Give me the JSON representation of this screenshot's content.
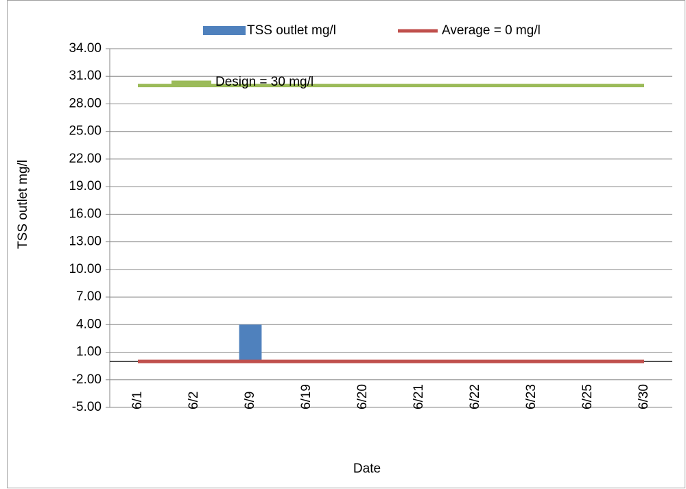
{
  "chart_data": {
    "type": "bar",
    "x_label": "Date",
    "y_label": "TSS outlet mg/l",
    "categories": [
      "6/1",
      "6/2",
      "6/9",
      "6/19",
      "6/20",
      "6/21",
      "6/22",
      "6/23",
      "6/25",
      "6/30"
    ],
    "series": [
      {
        "name": "TSS outlet  mg/l",
        "type": "bar",
        "color": "#4f81bd",
        "values": [
          0,
          0,
          4,
          0,
          0,
          0,
          0,
          0,
          0,
          0
        ]
      },
      {
        "name": "Average = 0 mg/l",
        "type": "line",
        "color": "#c0504d",
        "values": [
          0,
          0,
          0,
          0,
          0,
          0,
          0,
          0,
          0,
          0
        ]
      },
      {
        "name": "Design = 30 mg/l",
        "type": "line",
        "color": "#9bbb59",
        "values": [
          30,
          30,
          30,
          30,
          30,
          30,
          30,
          30,
          30,
          30
        ]
      }
    ],
    "ylim": [
      -5,
      34
    ],
    "yticks": [
      {
        "value": -5,
        "label": "-5.00"
      },
      {
        "value": -2,
        "label": "-2.00"
      },
      {
        "value": 1,
        "label": "1.00"
      },
      {
        "value": 4,
        "label": "4.00"
      },
      {
        "value": 7,
        "label": "7.00"
      },
      {
        "value": 10,
        "label": "10.00"
      },
      {
        "value": 13,
        "label": "13.00"
      },
      {
        "value": 16,
        "label": "16.00"
      },
      {
        "value": 19,
        "label": "19.00"
      },
      {
        "value": 22,
        "label": "22.00"
      },
      {
        "value": 25,
        "label": "25.00"
      },
      {
        "value": 28,
        "label": "28.00"
      },
      {
        "value": 31,
        "label": "31.00"
      },
      {
        "value": 34,
        "label": "34.00"
      }
    ],
    "grid": true
  }
}
